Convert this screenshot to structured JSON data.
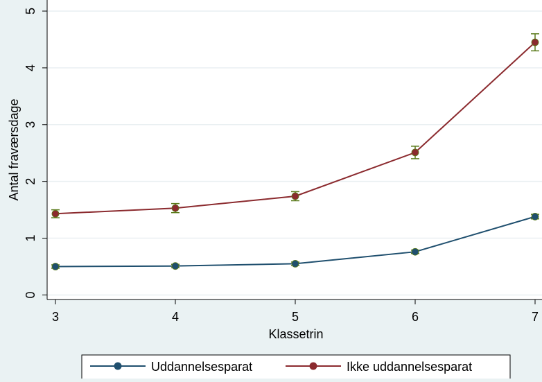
{
  "chart_data": {
    "type": "line",
    "xlabel": "Klassetrin",
    "ylabel": "Antal fraværsdage",
    "x": [
      3,
      4,
      5,
      6,
      7
    ],
    "x_tick_labels": [
      "3",
      "4",
      "5",
      "6",
      "7"
    ],
    "y_ticks": [
      0,
      1,
      2,
      3,
      4,
      5
    ],
    "y_tick_labels": [
      "0",
      "1",
      "2",
      "3",
      "4",
      "5"
    ],
    "xlim": [
      3,
      7
    ],
    "ylim": [
      -0.08,
      5.0
    ],
    "grid": true,
    "legend_position": "bottom",
    "series": [
      {
        "name": "Uddannelsesparat",
        "color": "#1f4f6e",
        "values": [
          0.5,
          0.51,
          0.55,
          0.76,
          1.38
        ],
        "ci_low": [
          0.47,
          0.48,
          0.52,
          0.73,
          1.34
        ],
        "ci_high": [
          0.53,
          0.54,
          0.58,
          0.79,
          1.42
        ]
      },
      {
        "name": "Ikke uddannelsesparat",
        "color": "#8b2a2e",
        "values": [
          1.43,
          1.53,
          1.74,
          2.51,
          4.45
        ],
        "ci_low": [
          1.36,
          1.45,
          1.66,
          2.4,
          4.3
        ],
        "ci_high": [
          1.5,
          1.61,
          1.82,
          2.62,
          4.6
        ]
      }
    ],
    "errorbar_color": "#5a7a1a"
  }
}
